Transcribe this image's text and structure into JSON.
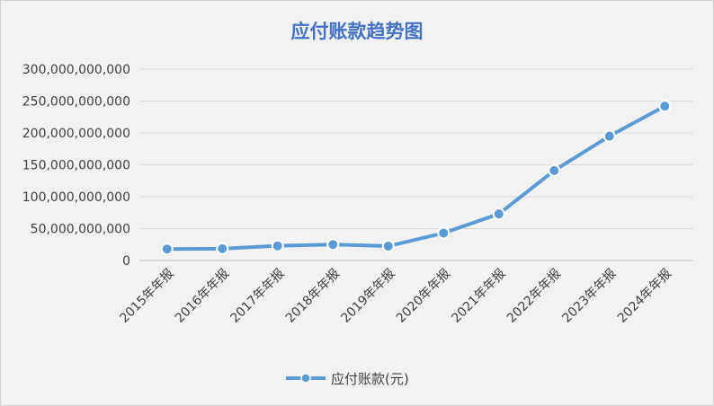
{
  "chart_data": {
    "type": "line",
    "title": "应付账款趋势图",
    "categories": [
      "2015年年报",
      "2016年年报",
      "2017年年报",
      "2018年年报",
      "2019年年报",
      "2020年年报",
      "2021年年报",
      "2022年年报",
      "2023年年报",
      "2024年年报"
    ],
    "series": [
      {
        "name": "应付账款(元)",
        "values": [
          18000000000,
          18500000000,
          23000000000,
          25000000000,
          22500000000,
          43000000000,
          73000000000,
          141000000000,
          195000000000,
          242000000000
        ]
      }
    ],
    "ylim": [
      0,
      300000000000
    ],
    "yticks": [
      0,
      50000000000,
      100000000000,
      150000000000,
      200000000000,
      250000000000,
      300000000000
    ],
    "ytick_labels": [
      "0",
      "50,000,000,000",
      "100,000,000,000",
      "150,000,000,000",
      "200,000,000,000",
      "250,000,000,000",
      "300,000,000,000"
    ],
    "xlabel": "",
    "ylabel": "",
    "grid": true,
    "legend_position": "bottom",
    "colors": {
      "line": "#5b9bd5",
      "title": "#4472c4",
      "grid": "#d9d9d9"
    }
  }
}
